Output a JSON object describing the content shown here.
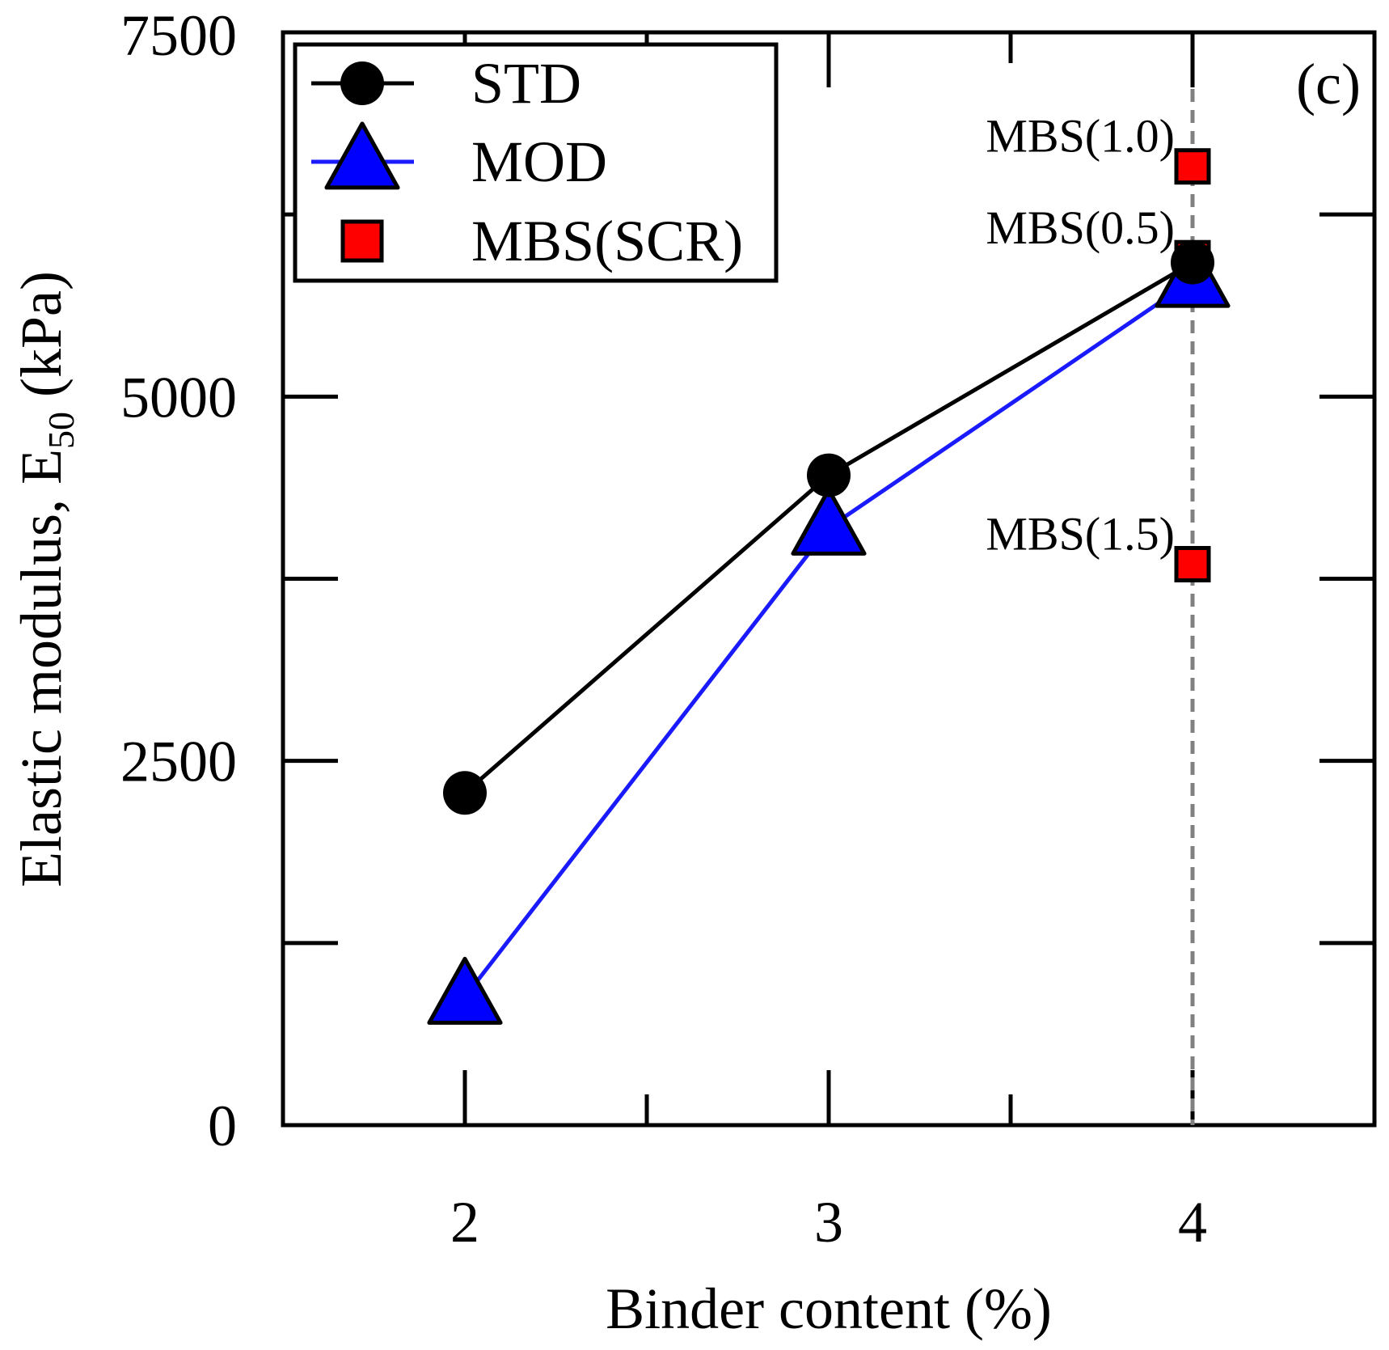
{
  "chart_data": {
    "type": "line",
    "panel_label": "(c)",
    "xlabel": "Binder content (%)",
    "ylabel_main": "Elastic modulus, E",
    "ylabel_sub": "50",
    "ylabel_unit": " (kPa)",
    "xlim": [
      1.5,
      4.5
    ],
    "ylim": [
      0,
      7500
    ],
    "x_ticks": [
      2,
      3,
      4
    ],
    "x_tick_labels": [
      "2",
      "3",
      "4"
    ],
    "y_ticks": [
      0,
      2500,
      5000,
      7500
    ],
    "y_tick_labels": [
      "0",
      "2500",
      "5000",
      "7500"
    ],
    "y_minor_ticks": [
      1250,
      3750,
      6250
    ],
    "x_minor_ticks": [
      2.5,
      3.5
    ],
    "reference_line_x": 4,
    "legend_position": "top-left",
    "colors": {
      "std": "#000000",
      "mod_line": "#1a1aff",
      "mod_fill": "#0000ff",
      "mbs_fill": "#ff0000",
      "ref_line": "#808080"
    },
    "series": [
      {
        "name": "STD",
        "marker": "circle",
        "x": [
          2,
          3,
          4
        ],
        "y": [
          2280,
          4460,
          5920
        ]
      },
      {
        "name": "MOD",
        "marker": "triangle",
        "x": [
          2,
          3,
          4
        ],
        "y": [
          880,
          4100,
          5800
        ]
      },
      {
        "name": "MBS(SCR)",
        "marker": "square",
        "x": [
          4,
          4,
          4
        ],
        "y": [
          5950,
          6580,
          3850
        ],
        "labels": [
          "MBS(0.5)",
          "MBS(1.0)",
          "MBS(1.5)"
        ]
      }
    ]
  }
}
